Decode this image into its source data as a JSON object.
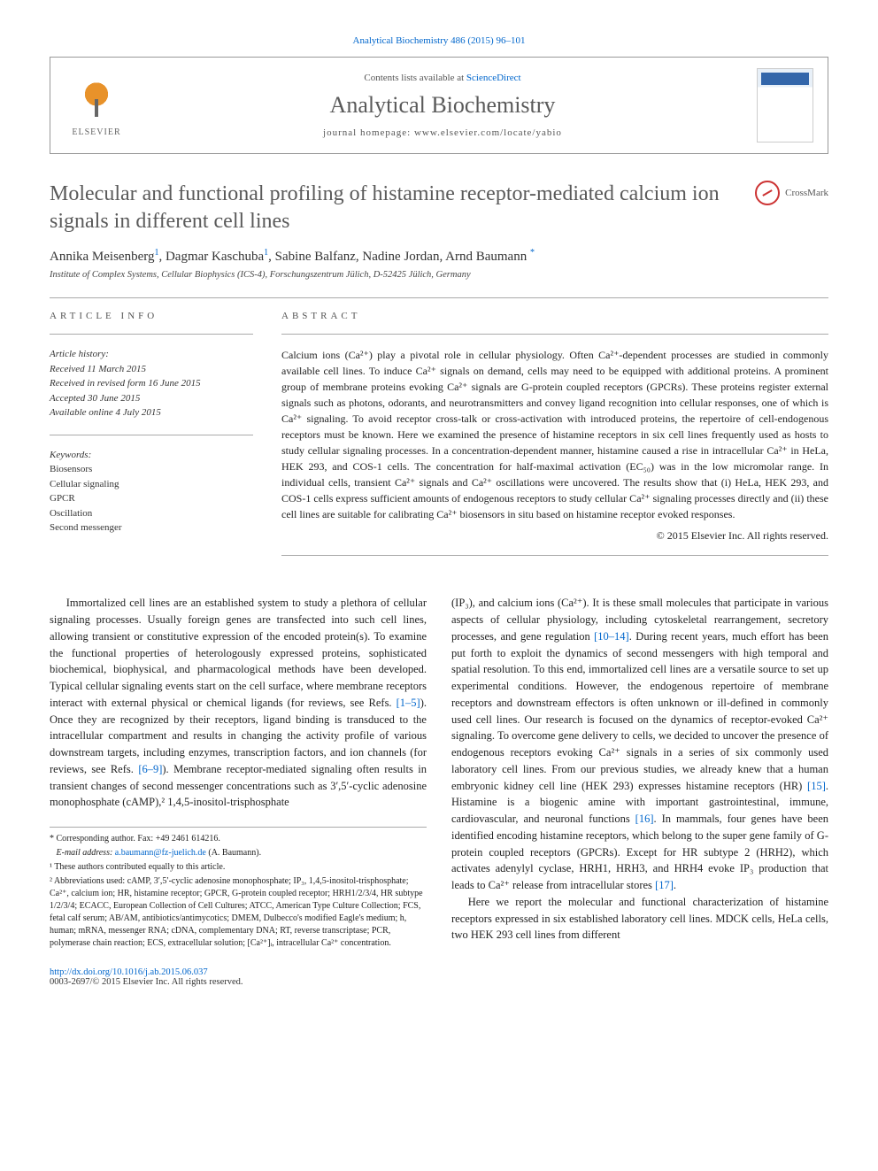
{
  "journal_ref": {
    "prefix": "Analytical Biochemistry 486 (2015) 96–101",
    "link_text": "Analytical Biochemistry 486 (2015) 96–101"
  },
  "header": {
    "contents_prefix": "Contents lists available at ",
    "contents_link": "ScienceDirect",
    "journal_name": "Analytical Biochemistry",
    "homepage_label": "journal homepage: ",
    "homepage_url": "www.elsevier.com/locate/yabio",
    "elsevier_label": "ELSEVIER"
  },
  "crossmark_label": "CrossMark",
  "title": "Molecular and functional profiling of histamine receptor-mediated calcium ion signals in different cell lines",
  "authors": [
    {
      "name": "Annika Meisenberg",
      "marks": "1"
    },
    {
      "name": "Dagmar Kaschuba",
      "marks": "1"
    },
    {
      "name": "Sabine Balfanz",
      "marks": ""
    },
    {
      "name": "Nadine Jordan",
      "marks": ""
    },
    {
      "name": "Arnd Baumann",
      "marks": "*"
    }
  ],
  "affiliation": "Institute of Complex Systems, Cellular Biophysics (ICS-4), Forschungszentrum Jülich, D-52425 Jülich, Germany",
  "article_info": {
    "label": "ARTICLE INFO",
    "history_label": "Article history:",
    "history": [
      "Received 11 March 2015",
      "Received in revised form 16 June 2015",
      "Accepted 30 June 2015",
      "Available online 4 July 2015"
    ],
    "keywords_label": "Keywords:",
    "keywords": [
      "Biosensors",
      "Cellular signaling",
      "GPCR",
      "Oscillation",
      "Second messenger"
    ]
  },
  "abstract": {
    "label": "ABSTRACT",
    "text": "Calcium ions (Ca²⁺) play a pivotal role in cellular physiology. Often Ca²⁺-dependent processes are studied in commonly available cell lines. To induce Ca²⁺ signals on demand, cells may need to be equipped with additional proteins. A prominent group of membrane proteins evoking Ca²⁺ signals are G-protein coupled receptors (GPCRs). These proteins register external signals such as photons, odorants, and neurotransmitters and convey ligand recognition into cellular responses, one of which is Ca²⁺ signaling. To avoid receptor cross-talk or cross-activation with introduced proteins, the repertoire of cell-endogenous receptors must be known. Here we examined the presence of histamine receptors in six cell lines frequently used as hosts to study cellular signaling processes. In a concentration-dependent manner, histamine caused a rise in intracellular Ca²⁺ in HeLa, HEK 293, and COS-1 cells. The concentration for half-maximal activation (EC₅₀) was in the low micromolar range. In individual cells, transient Ca²⁺ signals and Ca²⁺ oscillations were uncovered. The results show that (i) HeLa, HEK 293, and COS-1 cells express sufficient amounts of endogenous receptors to study cellular Ca²⁺ signaling processes directly and (ii) these cell lines are suitable for calibrating Ca²⁺ biosensors in situ based on histamine receptor evoked responses.",
    "copyright": "© 2015 Elsevier Inc. All rights reserved."
  },
  "body": {
    "left": "Immortalized cell lines are an established system to study a plethora of cellular signaling processes. Usually foreign genes are transfected into such cell lines, allowing transient or constitutive expression of the encoded protein(s). To examine the functional properties of heterologously expressed proteins, sophisticated biochemical, biophysical, and pharmacological methods have been developed. Typical cellular signaling events start on the cell surface, where membrane receptors interact with external physical or chemical ligands (for reviews, see Refs. [1–5]). Once they are recognized by their receptors, ligand binding is transduced to the intracellular compartment and results in changing the activity profile of various downstream targets, including enzymes, transcription factors, and ion channels (for reviews, see Refs. [6–9]). Membrane receptor-mediated signaling often results in transient changes of second messenger concentrations such as 3′,5′-cyclic adenosine monophosphate (cAMP),² 1,4,5-inositol-trisphosphate",
    "right_p1": "(IP₃), and calcium ions (Ca²⁺). It is these small molecules that participate in various aspects of cellular physiology, including cytoskeletal rearrangement, secretory processes, and gene regulation [10–14]. During recent years, much effort has been put forth to exploit the dynamics of second messengers with high temporal and spatial resolution. To this end, immortalized cell lines are a versatile source to set up experimental conditions. However, the endogenous repertoire of membrane receptors and downstream effectors is often unknown or ill-defined in commonly used cell lines. Our research is focused on the dynamics of receptor-evoked Ca²⁺ signaling. To overcome gene delivery to cells, we decided to uncover the presence of endogenous receptors evoking Ca²⁺ signals in a series of six commonly used laboratory cell lines. From our previous studies, we already knew that a human embryonic kidney cell line (HEK 293) expresses histamine receptors (HR) [15]. Histamine is a biogenic amine with important gastrointestinal, immune, cardiovascular, and neuronal functions [16]. In mammals, four genes have been identified encoding histamine receptors, which belong to the super gene family of G-protein coupled receptors (GPCRs). Except for HR subtype 2 (HRH2), which activates adenylyl cyclase, HRH1, HRH3, and HRH4 evoke IP₃ production that leads to Ca²⁺ release from intracellular stores [17].",
    "right_p2": "Here we report the molecular and functional characterization of histamine receptors expressed in six established laboratory cell lines. MDCK cells, HeLa cells, two HEK 293 cell lines from different"
  },
  "footnotes": {
    "corr_label": "* Corresponding author. Fax: +49 2461 614216.",
    "email_label": "E-mail address: ",
    "email": "a.baumann@fz-juelich.de",
    "email_suffix": " (A. Baumann).",
    "note1": "¹ These authors contributed equally to this article.",
    "note2": "² Abbreviations used: cAMP, 3′,5′-cyclic adenosine monophosphate; IP₃, 1,4,5-inositol-trisphosphate; Ca²⁺, calcium ion; HR, histamine receptor; GPCR, G-protein coupled receptor; HRH1/2/3/4, HR subtype 1/2/3/4; ECACC, European Collection of Cell Cultures; ATCC, American Type Culture Collection; FCS, fetal calf serum; AB/AM, antibiotics/antimycotics; DMEM, Dulbecco's modified Eagle's medium; h, human; mRNA, messenger RNA; cDNA, complementary DNA; RT, reverse transcriptase; PCR, polymerase chain reaction; ECS, extracellular solution; [Ca²⁺]ᵢ, intracellular Ca²⁺ concentration."
  },
  "footer": {
    "doi": "http://dx.doi.org/10.1016/j.ab.2015.06.037",
    "issn_line": "0003-2697/© 2015 Elsevier Inc. All rights reserved."
  },
  "colors": {
    "link": "#0066cc",
    "heading": "#5a5a5a",
    "border": "#999999"
  }
}
